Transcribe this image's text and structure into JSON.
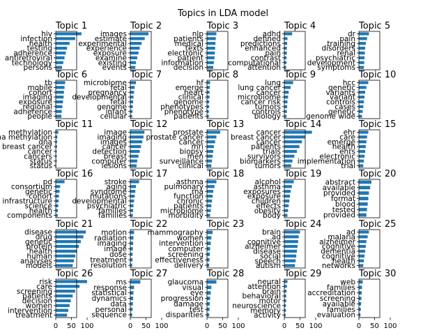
{
  "chart_data": {
    "type": "bar",
    "orientation": "horizontal",
    "title": "Topics in LDA model",
    "xlim": [
      0,
      100
    ],
    "xticks": [
      0,
      50,
      100
    ],
    "bar_color": "#1f77b4",
    "grid": false,
    "layout": {
      "rows": 6,
      "cols": 5
    },
    "panels": [
      {
        "title": "Topic 1",
        "words": [
          "hiv",
          "infection",
          "health",
          "testing",
          "adherence",
          "antiretroviral",
          "technology",
          "persons"
        ],
        "values": [
          82,
          62,
          44,
          36,
          32,
          28,
          24,
          20
        ]
      },
      {
        "title": "Topic 2",
        "words": [
          "images",
          "estimate",
          "experimental",
          "experience",
          "exposure",
          "examine",
          "existing",
          "events"
        ],
        "values": [
          58,
          46,
          36,
          30,
          26,
          22,
          18,
          16
        ]
      },
      {
        "title": "Topic 3",
        "words": [
          "nlp",
          "patients",
          "medical",
          "texts",
          "electronic",
          "patient",
          "information",
          "decision"
        ],
        "values": [
          30,
          28,
          27,
          26,
          25,
          24,
          22,
          20
        ]
      },
      {
        "title": "Topic 4",
        "words": [
          "adhd",
          "defined",
          "predictions",
          "enhanced",
          "pain",
          "contrast",
          "computational",
          "attention"
        ],
        "values": [
          25,
          10,
          9,
          8,
          8,
          7,
          7,
          6
        ]
      },
      {
        "title": "Topic 5",
        "words": [
          "dr",
          "pain",
          "training",
          "disorders",
          "renal",
          "psychiatric",
          "development",
          "symptoms"
        ],
        "values": [
          32,
          26,
          22,
          20,
          19,
          18,
          17,
          16
        ]
      },
      {
        "title": "Topic 6",
        "words": [
          "tb",
          "mobile",
          "cohort",
          "imaging",
          "exposure",
          "regional",
          "adherence",
          "people"
        ],
        "values": [
          30,
          28,
          26,
          25,
          23,
          21,
          19,
          18
        ]
      },
      {
        "title": "Topic 7",
        "words": [
          "microbiome",
          "fetal",
          "pregnancy",
          "developmental",
          "fetal",
          "genome",
          "infant",
          "cellular"
        ],
        "values": [
          18,
          14,
          12,
          10,
          9,
          8,
          7,
          6
        ]
      },
      {
        "title": "Topic 8",
        "words": [
          "hf",
          "emerge",
          "heart",
          "clinical",
          "genome",
          "phenotypes",
          "phenotype",
          "patients"
        ],
        "values": [
          10,
          9,
          8,
          8,
          7,
          7,
          6,
          6
        ]
      },
      {
        "title": "Topic 9",
        "words": [
          "lung",
          "lung cancer",
          "cancer",
          "microbiome",
          "cancer risk",
          "tumors",
          "controls",
          "biology"
        ],
        "values": [
          28,
          20,
          14,
          12,
          10,
          9,
          8,
          7
        ]
      },
      {
        "title": "Topic 10",
        "words": [
          "hcc",
          "genetic",
          "variants",
          "variant",
          "controls",
          "cases",
          "genetic",
          "genome wide"
        ],
        "values": [
          30,
          24,
          20,
          18,
          16,
          14,
          12,
          10
        ]
      },
      {
        "title": "Topic 11",
        "words": [
          "methylation",
          "dna methylation",
          "dna",
          "breast cancer",
          "cancer",
          "cancers",
          "status",
          "status"
        ],
        "values": [
          8,
          5,
          4,
          4,
          3,
          3,
          3,
          2
        ]
      },
      {
        "title": "Topic 12",
        "words": [
          "image",
          "imaging",
          "images",
          "cancer",
          "detection",
          "breast",
          "computer",
          "lesions"
        ],
        "values": [
          45,
          42,
          38,
          34,
          30,
          26,
          22,
          20
        ]
      },
      {
        "title": "Topic 13",
        "words": [
          "prostate",
          "prostate cancer",
          "cancer",
          "mri",
          "biopsy",
          "men",
          "surveillance",
          "clinical"
        ],
        "values": [
          42,
          30,
          26,
          22,
          20,
          18,
          16,
          14
        ]
      },
      {
        "title": "Topic 14",
        "words": [
          "cancer",
          "breast cancer",
          "cancer",
          "patients",
          "trials",
          "survivors",
          "biomarkers",
          "tumors"
        ],
        "values": [
          88,
          66,
          56,
          48,
          40,
          32,
          26,
          22
        ]
      },
      {
        "title": "Topic 15",
        "words": [
          "ehr",
          "care",
          "emerge",
          "health",
          "ehrs",
          "electronic",
          "implementation",
          "trial"
        ],
        "values": [
          30,
          26,
          24,
          22,
          20,
          18,
          16,
          14
        ]
      },
      {
        "title": "Topic 16",
        "words": [
          "pd",
          "consortium",
          "genetic",
          "cohort",
          "infrastructure",
          "science",
          "health",
          "components"
        ],
        "values": [
          28,
          14,
          12,
          10,
          9,
          8,
          7,
          6
        ]
      },
      {
        "title": "Topic 17",
        "words": [
          "stroke",
          "aging",
          "syndrome",
          "mutations",
          "developmental",
          "psychiatric",
          "families",
          "families"
        ],
        "values": [
          28,
          18,
          16,
          14,
          12,
          10,
          9,
          8
        ]
      },
      {
        "title": "Topic 18",
        "words": [
          "asthma",
          "pulmonary",
          "rna",
          "function",
          "chronic",
          "patients",
          "microbiome",
          "morbidity"
        ],
        "values": [
          30,
          24,
          20,
          18,
          16,
          14,
          12,
          10
        ]
      },
      {
        "title": "Topic 19",
        "words": [
          "alcohol",
          "asthma",
          "exposures",
          "exposure",
          "children",
          "effects",
          "obesity",
          "body"
        ],
        "values": [
          30,
          24,
          20,
          18,
          16,
          14,
          12,
          10
        ]
      },
      {
        "title": "Topic 20",
        "words": [
          "abstract",
          "available",
          "provided",
          "format",
          "blood",
          "tested",
          "provided"
        ],
        "values": [
          40,
          36,
          32,
          30,
          28,
          26,
          24
        ]
      },
      {
        "title": "Topic 21",
        "words": [
          "disease",
          "drug",
          "genetic",
          "protein",
          "health",
          "human",
          "analyses",
          "models"
        ],
        "values": [
          96,
          88,
          80,
          74,
          68,
          62,
          58,
          54
        ]
      },
      {
        "title": "Topic 22",
        "words": [
          "motion",
          "radiation",
          "imaging",
          "image",
          "dose",
          "treatment",
          "resolution"
        ],
        "values": [
          12,
          10,
          9,
          8,
          7,
          7,
          6
        ]
      },
      {
        "title": "Topic 23",
        "words": [
          "mammography",
          "women",
          "intervention",
          "computer",
          "screening",
          "effectiveness",
          "delivery"
        ],
        "values": [
          18,
          14,
          12,
          10,
          9,
          8,
          7
        ]
      },
      {
        "title": "Topic 24",
        "words": [
          "brain",
          "ad",
          "cognitive",
          "alzheimer",
          "disease",
          "social",
          "speech",
          "autism"
        ],
        "values": [
          50,
          46,
          44,
          42,
          40,
          38,
          36,
          34
        ]
      },
      {
        "title": "Topic 25",
        "words": [
          "ad",
          "malaria",
          "alzheimer",
          "cognitive",
          "dementia",
          "cognitive",
          "health",
          "networks"
        ],
        "values": [
          32,
          28,
          24,
          22,
          20,
          18,
          16,
          14
        ]
      },
      {
        "title": "Topic 26",
        "words": [
          "risk",
          "care",
          "screening",
          "patients",
          "decision",
          "women",
          "intervention",
          "treatment"
        ],
        "values": [
          100,
          76,
          62,
          54,
          48,
          44,
          40,
          36
        ]
      },
      {
        "title": "Topic 27",
        "words": [
          "ms",
          "response",
          "statistical",
          "dynamics",
          "data",
          "personal",
          "sequence"
        ],
        "values": [
          32,
          12,
          10,
          9,
          8,
          7,
          6
        ]
      },
      {
        "title": "Topic 28",
        "words": [
          "glaucoma",
          "visual",
          "eye",
          "progression",
          "damage",
          "test",
          "disparities"
        ],
        "values": [
          30,
          14,
          12,
          10,
          9,
          8,
          7
        ]
      },
      {
        "title": "Topic 29",
        "words": [
          "neural",
          "attention",
          "brain",
          "behavioral",
          "motor",
          "neuroscience",
          "memory",
          "activity"
        ],
        "values": [
          10,
          8,
          7,
          6,
          6,
          5,
          5,
          4
        ]
      },
      {
        "title": "Topic 30",
        "words": [
          "web",
          "families",
          "accreditation",
          "screening",
          "available",
          "families",
          "evaluation"
        ],
        "values": [
          12,
          10,
          9,
          8,
          7,
          6,
          5
        ]
      }
    ]
  }
}
